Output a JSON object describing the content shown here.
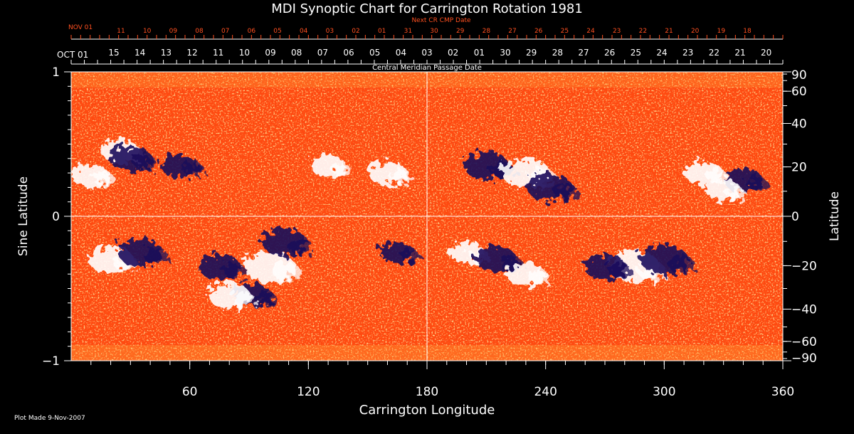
{
  "colors": {
    "background": "#000000",
    "axis": "#ffffff",
    "next_cr_scale": "#ff5020",
    "map_base": "#ff4a10",
    "positive_polarity": "#ffffff",
    "negative_polarity": "#1a0a5a"
  },
  "chart_data": {
    "type": "heatmap",
    "title": "MDI Synoptic Chart for Carrington Rotation 1981",
    "xlabel": "Carrington Longitude",
    "ylabel_left": "Sine Latitude",
    "ylabel_right": "Latitude",
    "xlim": [
      0,
      360
    ],
    "ylim": [
      -1,
      1
    ],
    "x_tick_labels": [
      "60",
      "120",
      "180",
      "240",
      "300",
      "360"
    ],
    "x_tick_values": [
      60,
      120,
      180,
      240,
      300,
      360
    ],
    "y_left_ticks": [
      {
        "value": 1,
        "label": "1"
      },
      {
        "value": 0,
        "label": "0"
      },
      {
        "value": -1,
        "label": "−1"
      }
    ],
    "y_right_ticks": [
      {
        "value": 90,
        "label": "90"
      },
      {
        "value": 60,
        "label": "60"
      },
      {
        "value": 40,
        "label": "40"
      },
      {
        "value": 20,
        "label": "20"
      },
      {
        "value": 0,
        "label": "0"
      },
      {
        "value": -20,
        "label": "−20"
      },
      {
        "value": -40,
        "label": "−40"
      },
      {
        "value": -60,
        "label": "−60"
      },
      {
        "value": -90,
        "label": "−90"
      }
    ],
    "cmp_scale_label": "Central Meridian Passage Date",
    "cmp_scale_start": "OCT 01",
    "cmp_dates": [
      {
        "label": "15",
        "lon": 21.6
      },
      {
        "label": "14",
        "lon": 34.8
      },
      {
        "label": "13",
        "lon": 48.0
      },
      {
        "label": "12",
        "lon": 61.2
      },
      {
        "label": "11",
        "lon": 74.4
      },
      {
        "label": "10",
        "lon": 87.6
      },
      {
        "label": "09",
        "lon": 100.8
      },
      {
        "label": "08",
        "lon": 114.0
      },
      {
        "label": "07",
        "lon": 127.2
      },
      {
        "label": "06",
        "lon": 140.4
      },
      {
        "label": "05",
        "lon": 153.6
      },
      {
        "label": "04",
        "lon": 166.8
      },
      {
        "label": "03",
        "lon": 180.0
      },
      {
        "label": "02",
        "lon": 193.2
      },
      {
        "label": "01",
        "lon": 206.4
      },
      {
        "label": "30",
        "lon": 219.6
      },
      {
        "label": "29",
        "lon": 232.8
      },
      {
        "label": "28",
        "lon": 246.0
      },
      {
        "label": "27",
        "lon": 259.2
      },
      {
        "label": "26",
        "lon": 272.4
      },
      {
        "label": "25",
        "lon": 285.6
      },
      {
        "label": "24",
        "lon": 298.8
      },
      {
        "label": "23",
        "lon": 312.0
      },
      {
        "label": "22",
        "lon": 325.2
      },
      {
        "label": "21",
        "lon": 338.4
      },
      {
        "label": "20",
        "lon": 351.6
      }
    ],
    "next_cr_label": "Next CR CMP Date",
    "next_cr_start": "NOV 01",
    "next_cr_dates": [
      {
        "label": "11",
        "lon": 25.2
      },
      {
        "label": "10",
        "lon": 38.4
      },
      {
        "label": "09",
        "lon": 51.6
      },
      {
        "label": "08",
        "lon": 64.8
      },
      {
        "label": "07",
        "lon": 78.0
      },
      {
        "label": "06",
        "lon": 91.2
      },
      {
        "label": "05",
        "lon": 104.4
      },
      {
        "label": "04",
        "lon": 117.6
      },
      {
        "label": "03",
        "lon": 130.8
      },
      {
        "label": "02",
        "lon": 144.0
      },
      {
        "label": "01",
        "lon": 157.2
      },
      {
        "label": "31",
        "lon": 170.4
      },
      {
        "label": "30",
        "lon": 183.6
      },
      {
        "label": "29",
        "lon": 196.8
      },
      {
        "label": "28",
        "lon": 210.0
      },
      {
        "label": "27",
        "lon": 223.2
      },
      {
        "label": "26",
        "lon": 236.4
      },
      {
        "label": "25",
        "lon": 249.6
      },
      {
        "label": "24",
        "lon": 262.8
      },
      {
        "label": "23",
        "lon": 276.0
      },
      {
        "label": "22",
        "lon": 289.2
      },
      {
        "label": "21",
        "lon": 302.4
      },
      {
        "label": "20",
        "lon": 315.6
      },
      {
        "label": "19",
        "lon": 328.8
      },
      {
        "label": "18",
        "lon": 342.0
      }
    ],
    "active_regions": [
      {
        "lon": 10,
        "sinlat": 0.28,
        "polarity": "positive",
        "strength": 0.6
      },
      {
        "lon": 25,
        "sinlat": 0.45,
        "polarity": "positive",
        "strength": 0.6
      },
      {
        "lon": 30,
        "sinlat": 0.4,
        "polarity": "negative",
        "strength": 0.7
      },
      {
        "lon": 55,
        "sinlat": 0.35,
        "polarity": "negative",
        "strength": 0.6
      },
      {
        "lon": 20,
        "sinlat": -0.3,
        "polarity": "positive",
        "strength": 0.8
      },
      {
        "lon": 35,
        "sinlat": -0.25,
        "polarity": "negative",
        "strength": 0.8
      },
      {
        "lon": 75,
        "sinlat": -0.35,
        "polarity": "negative",
        "strength": 0.7
      },
      {
        "lon": 100,
        "sinlat": -0.35,
        "polarity": "positive",
        "strength": 1.0
      },
      {
        "lon": 108,
        "sinlat": -0.18,
        "polarity": "negative",
        "strength": 0.8
      },
      {
        "lon": 92,
        "sinlat": -0.55,
        "polarity": "negative",
        "strength": 0.6
      },
      {
        "lon": 80,
        "sinlat": -0.55,
        "polarity": "positive",
        "strength": 0.7
      },
      {
        "lon": 160,
        "sinlat": 0.3,
        "polarity": "positive",
        "strength": 0.6
      },
      {
        "lon": 130,
        "sinlat": 0.35,
        "polarity": "positive",
        "strength": 0.5
      },
      {
        "lon": 165,
        "sinlat": -0.25,
        "polarity": "negative",
        "strength": 0.5
      },
      {
        "lon": 210,
        "sinlat": 0.35,
        "polarity": "negative",
        "strength": 0.8
      },
      {
        "lon": 230,
        "sinlat": 0.3,
        "polarity": "positive",
        "strength": 0.9
      },
      {
        "lon": 242,
        "sinlat": 0.2,
        "polarity": "negative",
        "strength": 0.8
      },
      {
        "lon": 200,
        "sinlat": -0.25,
        "polarity": "positive",
        "strength": 0.5
      },
      {
        "lon": 215,
        "sinlat": -0.3,
        "polarity": "negative",
        "strength": 0.7
      },
      {
        "lon": 230,
        "sinlat": -0.4,
        "polarity": "positive",
        "strength": 0.6
      },
      {
        "lon": 285,
        "sinlat": -0.35,
        "polarity": "positive",
        "strength": 1.0
      },
      {
        "lon": 270,
        "sinlat": -0.35,
        "polarity": "negative",
        "strength": 0.7
      },
      {
        "lon": 300,
        "sinlat": -0.3,
        "polarity": "negative",
        "strength": 0.9
      },
      {
        "lon": 320,
        "sinlat": 0.3,
        "polarity": "positive",
        "strength": 0.6
      },
      {
        "lon": 340,
        "sinlat": 0.25,
        "polarity": "negative",
        "strength": 0.6
      },
      {
        "lon": 330,
        "sinlat": 0.18,
        "polarity": "positive",
        "strength": 0.5
      }
    ]
  },
  "footer": {
    "plot_made": "Plot Made  9-Nov-2007"
  }
}
